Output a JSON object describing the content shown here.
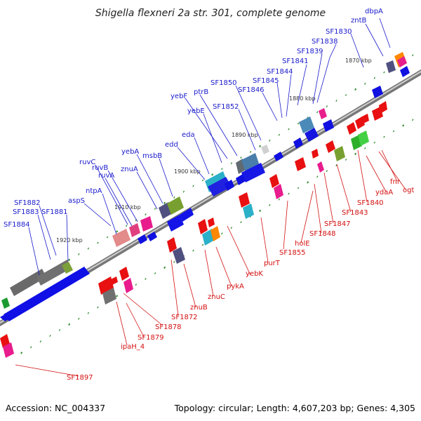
{
  "title": "Shigella flexneri 2a str. 301, complete genome",
  "footer": {
    "accession": "Accession: NC_004337",
    "summary": "Topology: circular; Length: 4,607,203 bp; Genes: 4,305"
  },
  "colors": {
    "forward_label": "#1a1acc",
    "reverse_label": "#d41010",
    "backbone": "#8c8c8c",
    "tick": "#2e8b2e"
  },
  "kbp_labels": [
    "1870 kbp",
    "1880 kbp",
    "1890 kbp",
    "1900 kbp",
    "1910 kbp",
    "1920 kbp"
  ],
  "forward_labels": [
    "dbpA",
    "zntB",
    "SF1830",
    "SF1838",
    "SF1839",
    "SF1841",
    "SF1844",
    "SF1845",
    "SF1846",
    "SF1850",
    "ptrB",
    "yebF",
    "SF1852",
    "yebE",
    "eda",
    "edd",
    "yebA",
    "msbB",
    "znuA",
    "ruvC",
    "ruvB",
    "ruvA",
    "ntpA",
    "aspS",
    "SF1882",
    "SF1883",
    "SF1881",
    "SF1884"
  ],
  "reverse_labels": [
    "fnr",
    "ogt",
    "ydaA",
    "SF1840",
    "SF1843",
    "SF1847",
    "SF1848",
    "holE",
    "SF1855",
    "purT",
    "yebK",
    "pykA",
    "znuC",
    "znuB",
    "SF1872",
    "SF1878",
    "SF1879",
    "ipaH_4",
    "SF1897"
  ]
}
